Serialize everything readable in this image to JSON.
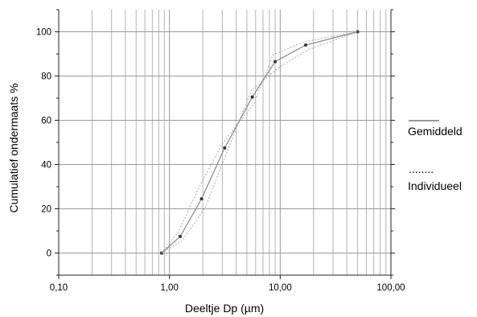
{
  "chart_data": {
    "type": "line",
    "xlabel": "Deeltje Dp (µm)",
    "ylabel": "Cumulatief ondermaats %",
    "x_scale": "log",
    "xlim": [
      0.1,
      100
    ],
    "ylim": [
      -10,
      110
    ],
    "x_ticks": [
      {
        "value": 0.1,
        "label": "0,10"
      },
      {
        "value": 1,
        "label": "1,00"
      },
      {
        "value": 10,
        "label": "10,00"
      },
      {
        "value": 100,
        "label": "100,00"
      }
    ],
    "y_ticks": [
      {
        "value": 0,
        "label": "0"
      },
      {
        "value": 20,
        "label": "20"
      },
      {
        "value": 40,
        "label": "40"
      },
      {
        "value": 60,
        "label": "60"
      },
      {
        "value": 80,
        "label": "80"
      },
      {
        "value": 100,
        "label": "100"
      }
    ],
    "grid": true,
    "legend_position": "right",
    "series": [
      {
        "name": "Gemiddeld",
        "style": "solid",
        "color": "#888888",
        "markers": true,
        "x": [
          0.85,
          1.25,
          1.95,
          3.15,
          5.6,
          9.0,
          17.0,
          50.0
        ],
        "y": [
          0,
          7.5,
          24.5,
          47.5,
          70.5,
          86.5,
          94,
          100
        ]
      },
      {
        "name": "Individueel",
        "style": "dotted",
        "color": "#999999",
        "markers": false,
        "x": [
          0.85,
          1.3,
          2.1,
          3.3,
          5.5,
          9.5,
          18.0,
          50.0
        ],
        "y": [
          0,
          5.5,
          20.5,
          45.5,
          73.5,
          83.5,
          92,
          100
        ]
      },
      {
        "style": "dotted",
        "color": "#999999",
        "markers": false,
        "x": [
          0.85,
          1.2,
          1.8,
          3.0,
          5.8,
          8.6,
          16.5,
          50.0
        ],
        "y": [
          0,
          9.5,
          28.5,
          49.5,
          67.5,
          89.5,
          95.5,
          100
        ]
      }
    ]
  },
  "legend": {
    "solid_symbol": "",
    "solid_label": "Gemiddeld",
    "dotted_symbol": "........",
    "dotted_label": "Individueel"
  }
}
